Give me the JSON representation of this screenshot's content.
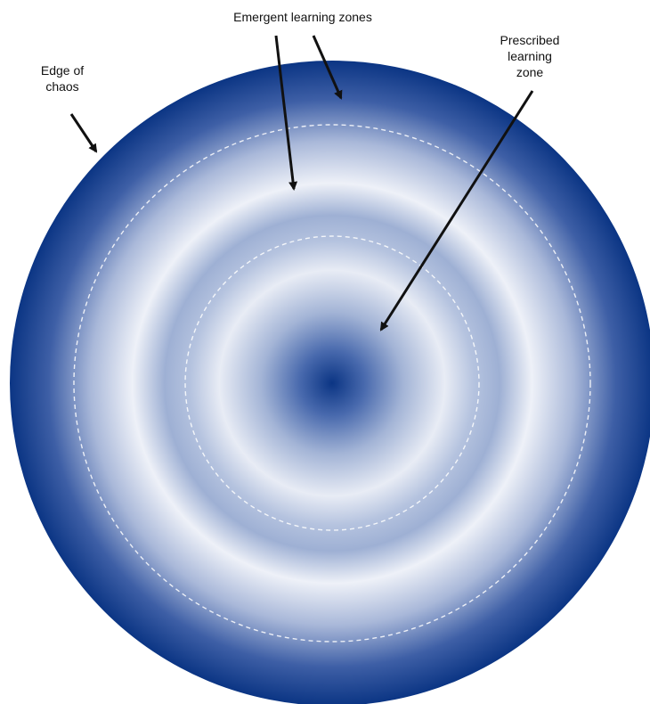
{
  "labels": {
    "edge_of_chaos": [
      "Edge of",
      "chaos"
    ],
    "emergent_learning_zones": "Emergent learning zones",
    "prescribed_learning_zone": [
      "Prescribed",
      "learning",
      "zone"
    ]
  },
  "colors": {
    "dark_blue": "#0b3584",
    "light": "#eef1f8",
    "dashed_ring": "#ffffff",
    "arrow": "#111111"
  }
}
